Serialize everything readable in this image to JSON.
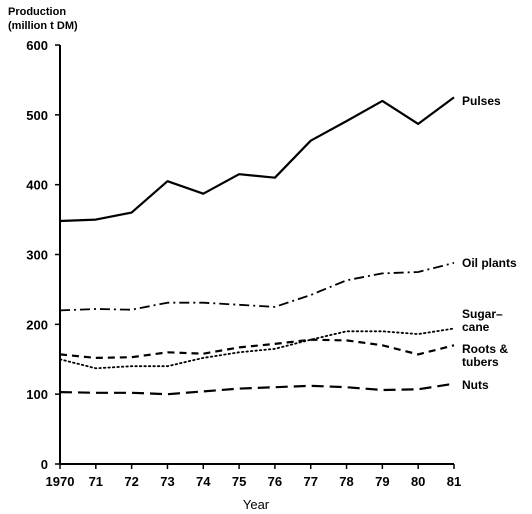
{
  "chart_data": {
    "type": "line",
    "ylabel_line1": "Production",
    "ylabel_line2": "(million t DM)",
    "xlabel": "Year",
    "xlim": [
      1970,
      1981
    ],
    "ylim": [
      0,
      600
    ],
    "x_tick_labels": [
      "1970",
      "71",
      "72",
      "73",
      "74",
      "75",
      "76",
      "77",
      "78",
      "79",
      "80",
      "81"
    ],
    "y_tick_labels": [
      "0",
      "100",
      "200",
      "300",
      "400",
      "500",
      "600"
    ],
    "x": [
      1970,
      1971,
      1972,
      1973,
      1974,
      1975,
      1976,
      1977,
      1978,
      1979,
      1980,
      1981
    ],
    "series": [
      {
        "key": "pulses",
        "label_lines": [
          "Pulses"
        ],
        "style": "solid",
        "values": [
          348,
          350,
          360,
          405,
          387,
          415,
          410,
          463,
          491,
          520,
          487,
          525
        ]
      },
      {
        "key": "oil",
        "label_lines": [
          "Oil plants"
        ],
        "style": "dashdot",
        "values": [
          220,
          222,
          221,
          231,
          231,
          228,
          225,
          242,
          263,
          273,
          275,
          288
        ]
      },
      {
        "key": "sugar",
        "label_lines": [
          "Sugar–",
          "cane"
        ],
        "style": "dotted",
        "values": [
          150,
          137,
          140,
          140,
          152,
          160,
          165,
          178,
          190,
          190,
          186,
          194
        ]
      },
      {
        "key": "roots",
        "label_lines": [
          "Roots &",
          "tubers"
        ],
        "style": "dashed",
        "values": [
          157,
          152,
          153,
          160,
          158,
          167,
          172,
          178,
          177,
          170,
          157,
          170
        ]
      },
      {
        "key": "nuts",
        "label_lines": [
          "Nuts"
        ],
        "style": "longdash",
        "values": [
          103,
          102,
          102,
          100,
          104,
          108,
          110,
          112,
          110,
          106,
          107,
          115
        ]
      }
    ]
  }
}
